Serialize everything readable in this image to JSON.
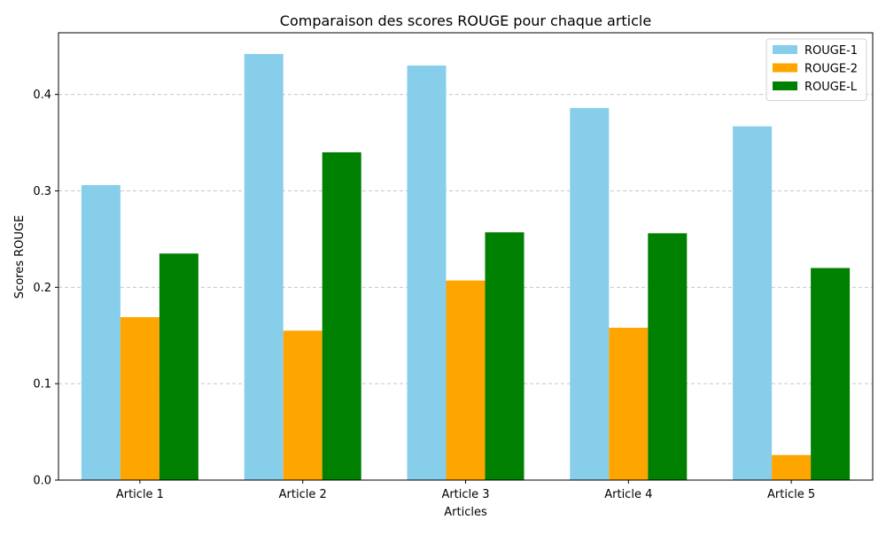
{
  "chart_data": {
    "type": "bar",
    "title": "Comparaison des scores ROUGE pour chaque article",
    "xlabel": "Articles",
    "ylabel": "Scores ROUGE",
    "categories": [
      "Article 1",
      "Article 2",
      "Article 3",
      "Article 4",
      "Article 5"
    ],
    "series": [
      {
        "name": "ROUGE-1",
        "color": "#87ceeb",
        "values": [
          0.306,
          0.442,
          0.43,
          0.386,
          0.367
        ]
      },
      {
        "name": "ROUGE-2",
        "color": "#ffa500",
        "values": [
          0.169,
          0.155,
          0.207,
          0.158,
          0.026
        ]
      },
      {
        "name": "ROUGE-L",
        "color": "#008000",
        "values": [
          0.235,
          0.34,
          0.257,
          0.256,
          0.22
        ]
      }
    ],
    "ylim": [
      0,
      0.464
    ],
    "yticks": [
      "0.0",
      "0.1",
      "0.2",
      "0.3",
      "0.4"
    ],
    "grid": "y-dashed",
    "legend": "top-right"
  }
}
